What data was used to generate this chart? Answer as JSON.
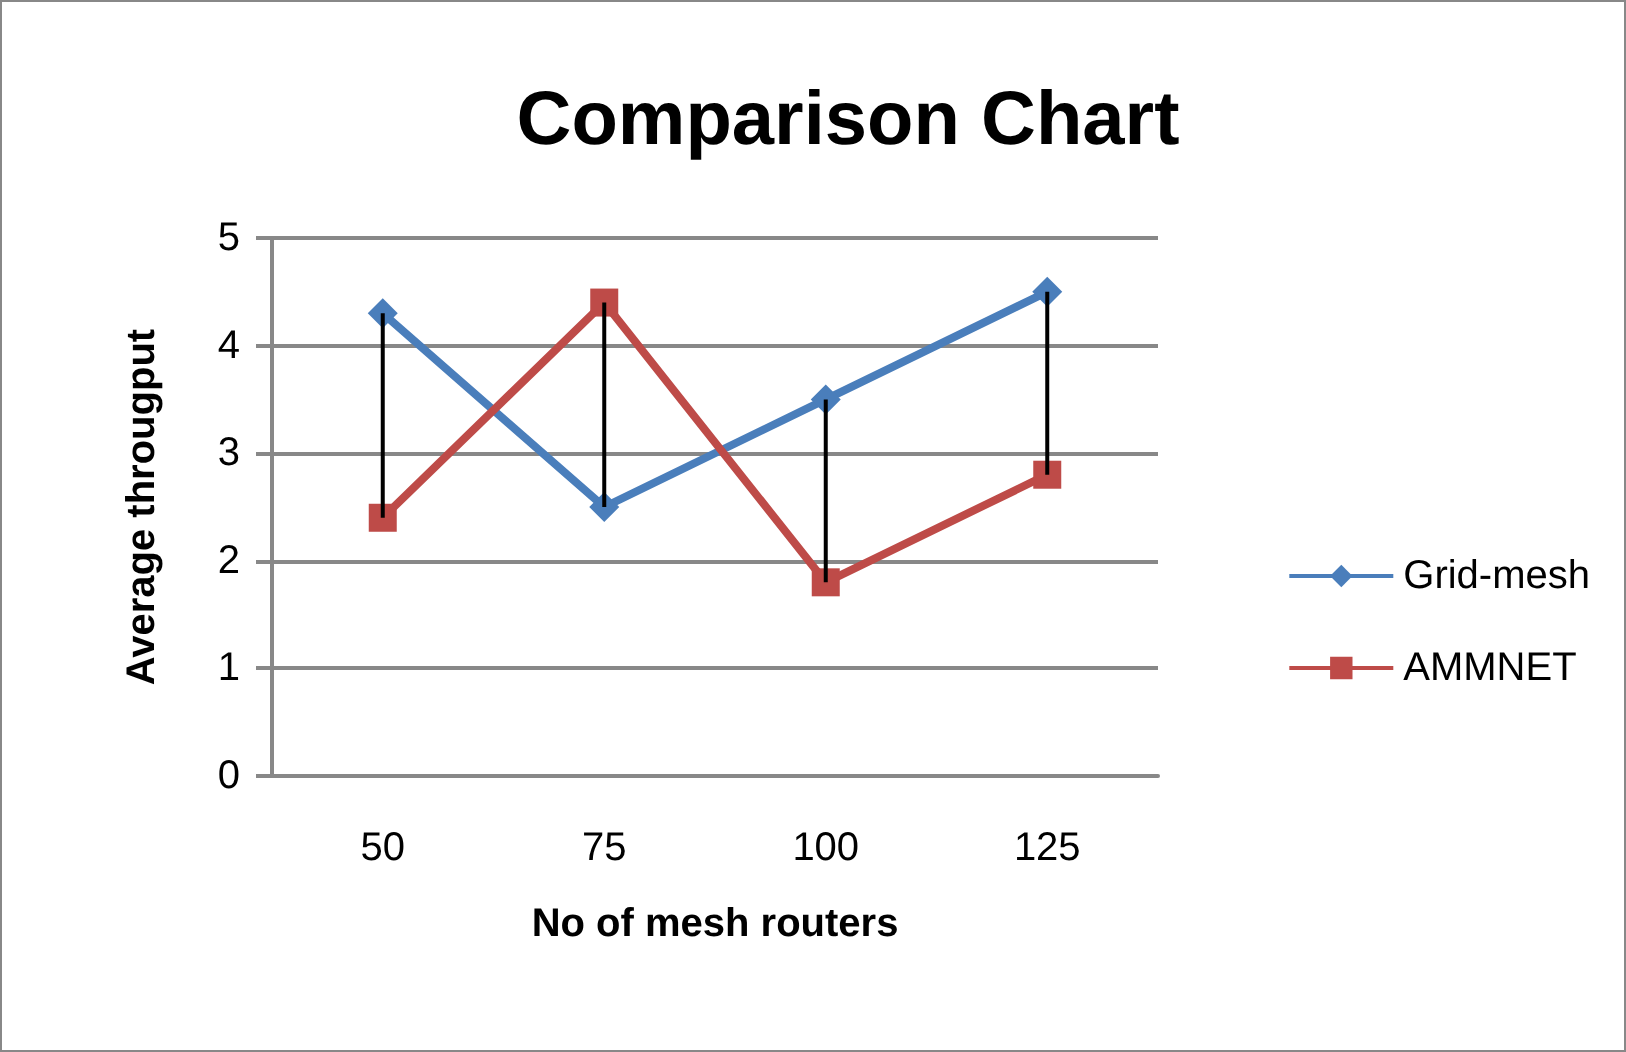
{
  "chart_data": {
    "type": "line",
    "title": "Comparison Chart",
    "xlabel": "No of mesh routers",
    "ylabel": "Average througput",
    "categories": [
      "50",
      "75",
      "100",
      "125"
    ],
    "series": [
      {
        "name": "Grid-mesh",
        "color": "#4a7ebb",
        "marker": "diamond",
        "values": [
          4.3,
          2.5,
          3.5,
          4.5
        ],
        "errors": [
          [
            2.4,
            4.3
          ],
          [
            2.5,
            4.4
          ],
          [
            1.8,
            3.5
          ],
          [
            2.8,
            4.5
          ]
        ]
      },
      {
        "name": "AMMNET",
        "color": "#be4b48",
        "marker": "square",
        "values": [
          2.4,
          4.4,
          1.8,
          2.8
        ]
      }
    ],
    "ylim": [
      0,
      5
    ],
    "yticks": [
      0,
      1,
      2,
      3,
      4,
      5
    ],
    "grid": "y",
    "legend": "right"
  }
}
